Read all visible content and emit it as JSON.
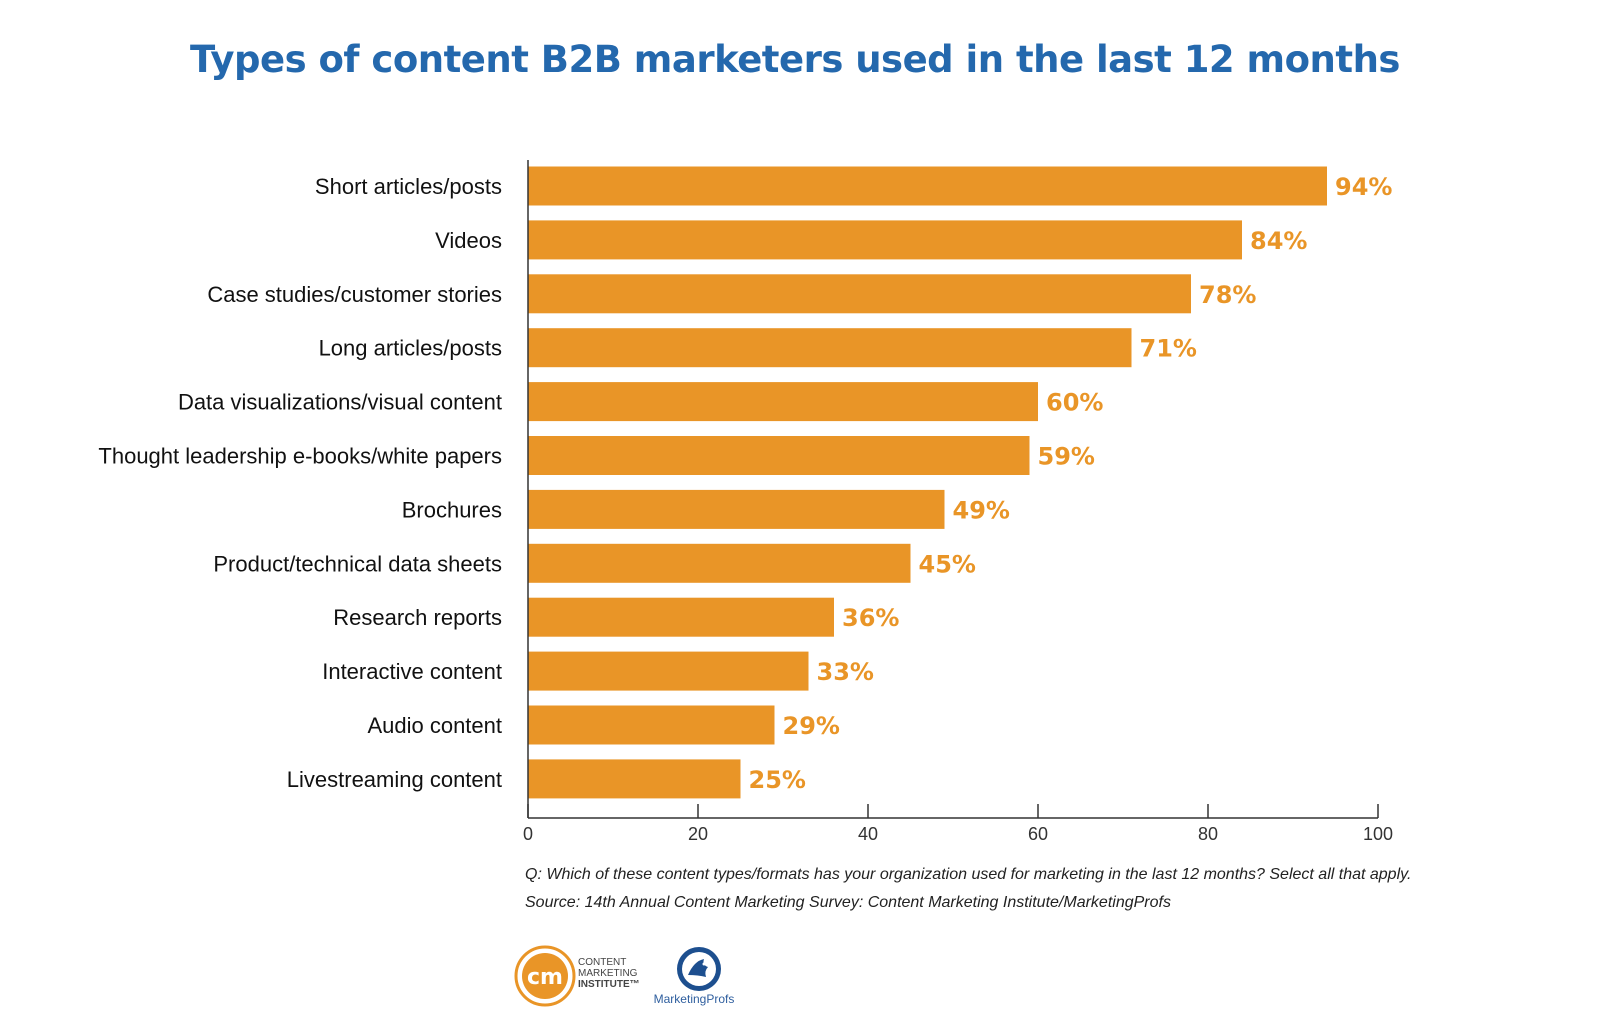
{
  "title": "Types of content B2B marketers used in the last 12 months",
  "chart_data": {
    "type": "bar",
    "orientation": "horizontal",
    "categories": [
      "Short articles/posts",
      "Videos",
      "Case studies/customer stories",
      "Long articles/posts",
      "Data visualizations/visual content",
      "Thought leadership e-books/white papers",
      "Brochures",
      "Product/technical data sheets",
      "Research reports",
      "Interactive content",
      "Audio content",
      "Livestreaming content"
    ],
    "values": [
      94,
      84,
      78,
      71,
      60,
      59,
      49,
      45,
      36,
      33,
      29,
      25
    ],
    "data_labels": [
      "94%",
      "84%",
      "78%",
      "71%",
      "60%",
      "59%",
      "49%",
      "45%",
      "36%",
      "33%",
      "29%",
      "25%"
    ],
    "xlim": [
      0,
      100
    ],
    "xticks": [
      "0",
      "20",
      "40",
      "60",
      "80",
      "100"
    ],
    "xlabel": "",
    "ylabel": "",
    "grid": false,
    "bar_color": "#e99527",
    "label_color": "#e99527"
  },
  "footnotes": {
    "question": "Q: Which of these content types/formats has your organization used for marketing in the last 12 months? Select all that apply.",
    "source": "Source: 14th Annual Content Marketing Survey: Content Marketing Institute/MarketingProfs"
  },
  "logos": {
    "cmi_mark": "cm",
    "cmi_line1": "CONTENT",
    "cmi_line2": "MARKETING",
    "cmi_line3": "INSTITUTE™",
    "mp_name": "MarketingProfs"
  },
  "colors": {
    "title": "#2468ad",
    "bar": "#e99527",
    "axis": "#333333"
  }
}
